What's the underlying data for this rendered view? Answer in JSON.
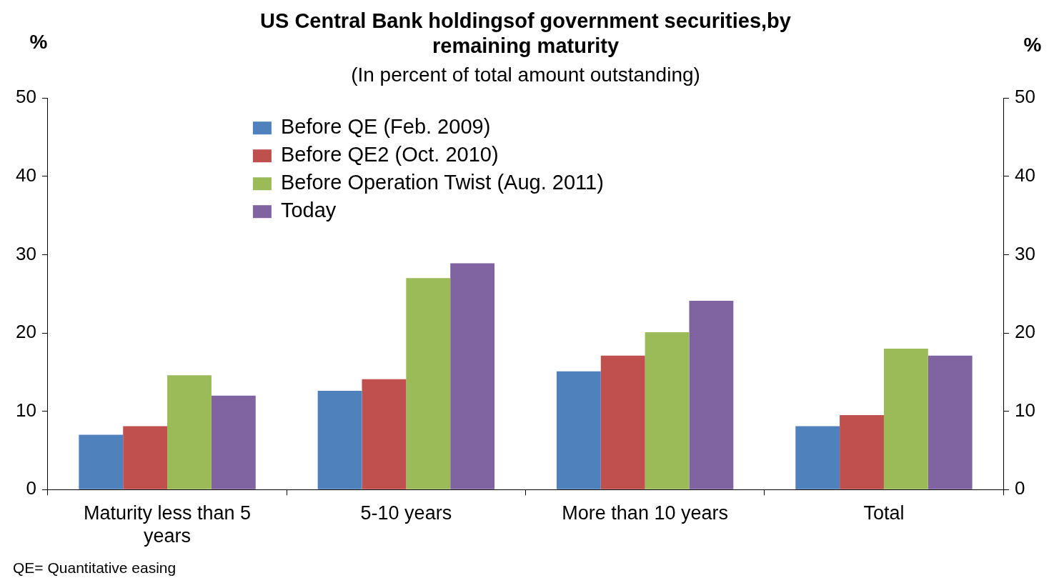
{
  "chart_data": {
    "type": "bar",
    "title": "US Central Bank holdingsof government securities,by remaining maturity",
    "subtitle": "(In percent of total amount outstanding)",
    "ylabel": "%",
    "y2label": "%",
    "categories": [
      "Maturity less than 5 years",
      "5-10 years",
      "More than 10 years",
      "Total"
    ],
    "series": [
      {
        "name": "Before QE (Feb. 2009)",
        "color": "#4f81bd",
        "values": [
          7.0,
          12.6,
          15.1,
          8.1
        ]
      },
      {
        "name": "Before QE2 (Oct. 2010)",
        "color": "#c0504d",
        "values": [
          8.1,
          14.1,
          17.1,
          9.5
        ]
      },
      {
        "name": "Before Operation Twist (Aug. 2011)",
        "color": "#9bbb59",
        "values": [
          14.6,
          27.0,
          20.1,
          18.0
        ]
      },
      {
        "name": "Today",
        "color": "#8064a2",
        "values": [
          12.0,
          28.9,
          24.1,
          17.1
        ]
      }
    ],
    "ylim": [
      0,
      50
    ],
    "yticks": [
      0,
      10,
      20,
      30,
      40,
      50
    ],
    "y2lim": [
      0,
      50
    ],
    "y2ticks": [
      0,
      10,
      20,
      30,
      40,
      50
    ],
    "grid": false,
    "legend": "top",
    "annotations": [
      "QE= Quantitative easing"
    ]
  }
}
